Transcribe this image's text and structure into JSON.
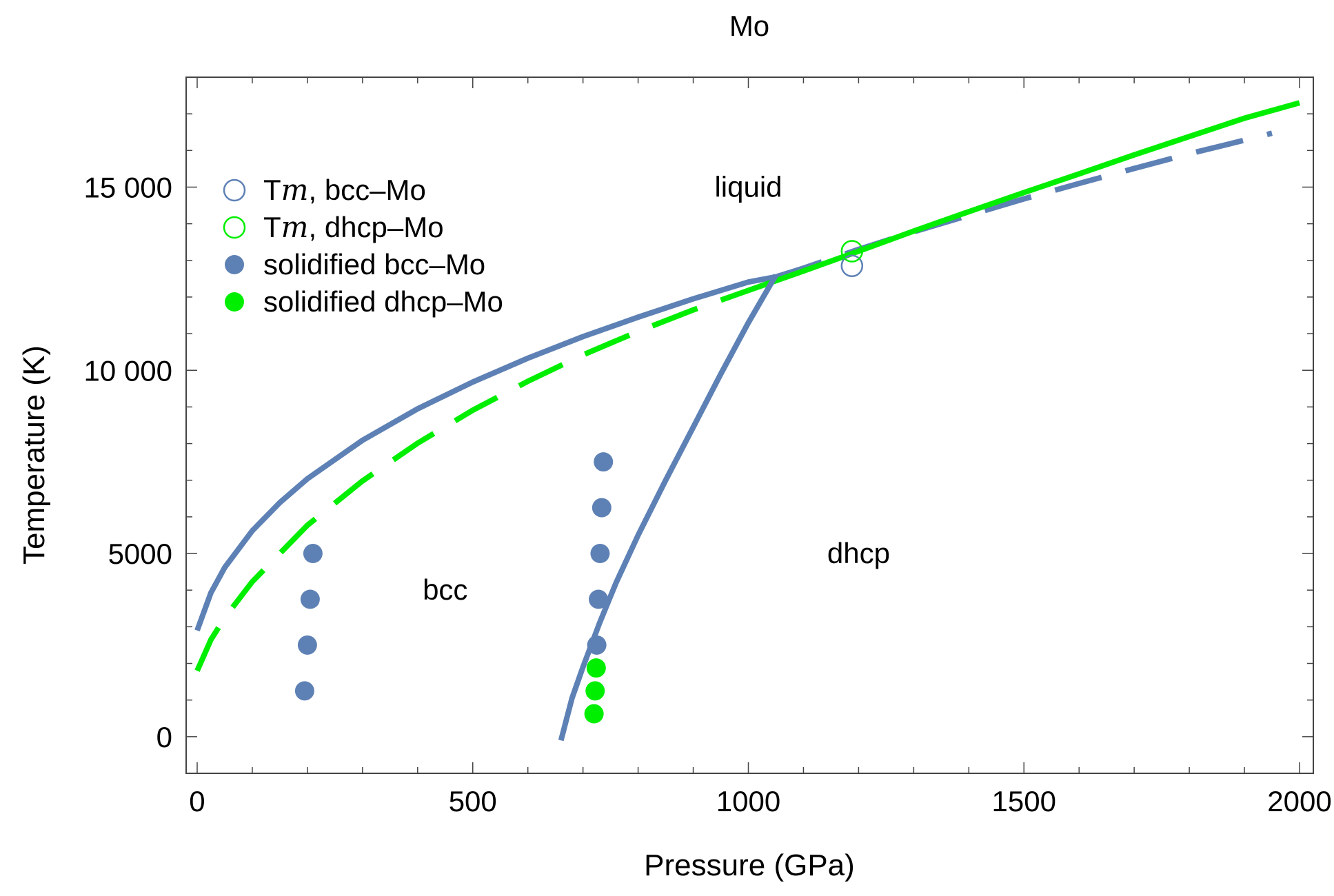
{
  "chart_data": {
    "type": "scatter",
    "title": "Mo",
    "xlabel": "Pressure (GPa)",
    "ylabel": "Temperature (K)",
    "xlim": [
      -20,
      2025
    ],
    "ylim": [
      -1000,
      18000
    ],
    "x_ticks": [
      0,
      500,
      1000,
      1500,
      2000
    ],
    "y_ticks": [
      0,
      5000,
      10000,
      15000
    ],
    "x_tick_labels": [
      "0",
      "500",
      "1000",
      "1500",
      "2000"
    ],
    "y_tick_labels": [
      "0",
      "5000",
      "10 000",
      "15 000"
    ],
    "colors": {
      "bcc": "#5e81b5",
      "dhcp": "#00ee00"
    },
    "legend": {
      "position": "top-left",
      "entries": [
        {
          "prefix": "T",
          "italic": "m",
          "suffix": ", bcc–Mo",
          "marker": "open-circle",
          "color": "#5e81b5"
        },
        {
          "prefix": "T",
          "italic": "m",
          "suffix": ", dhcp–Mo",
          "marker": "open-circle",
          "color": "#00ee00"
        },
        {
          "prefix": "solidified bcc–Mo",
          "italic": "",
          "suffix": "",
          "marker": "filled-circle",
          "color": "#5e81b5"
        },
        {
          "prefix": "solidified dhcp–Mo",
          "italic": "",
          "suffix": "",
          "marker": "filled-circle",
          "color": "#00ee00"
        }
      ]
    },
    "region_labels": [
      {
        "text": "liquid",
        "x": 1000,
        "y": 15000
      },
      {
        "text": "bcc",
        "x": 450,
        "y": 4000
      },
      {
        "text": "dhcp",
        "x": 1200,
        "y": 5000
      }
    ],
    "series": [
      {
        "name": "bcc melting curve (solid)",
        "style": "solid",
        "color": "#5e81b5",
        "x": [
          0,
          25,
          50,
          100,
          150,
          200,
          300,
          400,
          500,
          600,
          700,
          800,
          900,
          1000,
          1050
        ],
        "y": [
          2900,
          3930,
          4620,
          5620,
          6390,
          7040,
          8090,
          8950,
          9680,
          10330,
          10920,
          11450,
          11950,
          12410,
          12550
        ]
      },
      {
        "name": "bcc melting curve (dashed)",
        "style": "dashed",
        "color": "#5e81b5",
        "x": [
          1050,
          1100,
          1200,
          1300,
          1400,
          1500,
          1600,
          1700,
          1800,
          1900,
          1950
        ],
        "y": [
          12550,
          12790,
          13300,
          13780,
          14230,
          14680,
          15100,
          15510,
          15910,
          16280,
          16470
        ]
      },
      {
        "name": "dhcp melting curve (dashed)",
        "style": "dashed",
        "color": "#00ee00",
        "x": [
          0,
          25,
          50,
          100,
          150,
          200,
          300,
          400,
          500,
          600,
          700,
          800,
          900,
          1000
        ],
        "y": [
          1800,
          2650,
          3250,
          4230,
          5000,
          5770,
          6980,
          8010,
          8910,
          9700,
          10420,
          11060,
          11650,
          12180
        ]
      },
      {
        "name": "dhcp melting curve (solid)",
        "style": "solid",
        "color": "#00ee00",
        "x": [
          1000,
          1100,
          1200,
          1300,
          1400,
          1500,
          1600,
          1700,
          1800,
          1900,
          2000
        ],
        "y": [
          12180,
          12710,
          13250,
          13800,
          14330,
          14850,
          15360,
          15880,
          16380,
          16880,
          17300
        ]
      },
      {
        "name": "bcc-dhcp phase boundary",
        "style": "solid",
        "color": "#5e81b5",
        "x": [
          660,
          680,
          700,
          730,
          760,
          800,
          850,
          900,
          950,
          1000,
          1050
        ],
        "y": [
          -100,
          1050,
          1900,
          3100,
          4200,
          5500,
          7000,
          8450,
          9900,
          11300,
          12600
        ]
      },
      {
        "name": "Tm, bcc-Mo",
        "marker": "open-circle",
        "color": "#5e81b5",
        "x": [
          1188
        ],
        "y": [
          12850
        ]
      },
      {
        "name": "Tm, dhcp-Mo",
        "marker": "open-circle",
        "color": "#00ee00",
        "x": [
          1188
        ],
        "y": [
          13250
        ]
      },
      {
        "name": "solidified bcc-Mo",
        "marker": "filled-circle",
        "color": "#5e81b5",
        "x": [
          195,
          200,
          205,
          210,
          725,
          728,
          731,
          734,
          737
        ],
        "y": [
          1250,
          2500,
          3750,
          5000,
          2500,
          3750,
          5000,
          6250,
          7500
        ]
      },
      {
        "name": "solidified dhcp-Mo",
        "marker": "filled-circle",
        "color": "#00ee00",
        "x": [
          720,
          722,
          724
        ],
        "y": [
          625,
          1250,
          1875
        ]
      }
    ]
  }
}
